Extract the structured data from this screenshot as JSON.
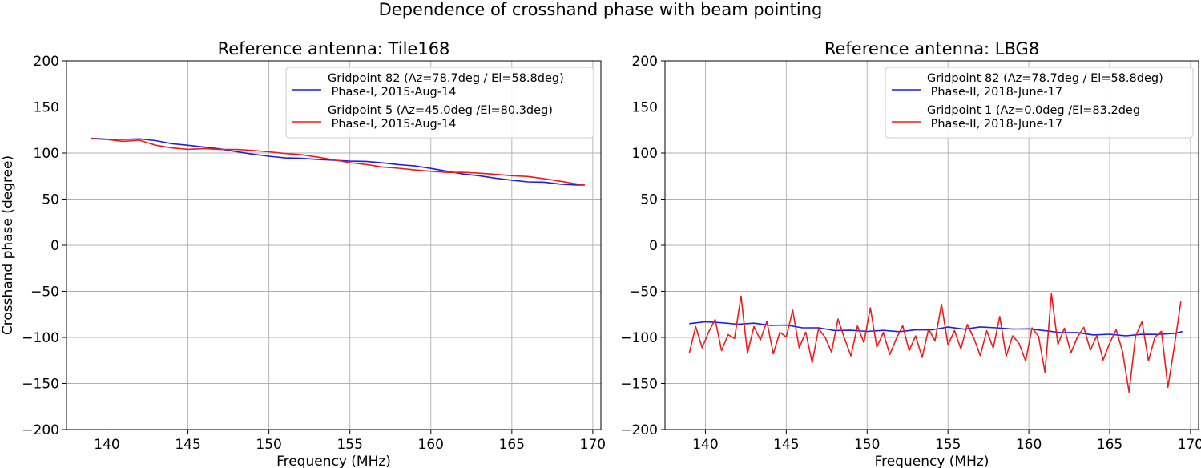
{
  "figure": {
    "suptitle": "Dependence of crosshand phase with beam pointing",
    "ylabel": "Crosshand phase (degree)"
  },
  "colors": {
    "blue": "#1f1fe0",
    "red": "#ee1c1c"
  },
  "chart_data": [
    {
      "type": "line",
      "title": "Reference antenna: Tile168",
      "xlabel": "Frequency (MHz)",
      "ylabel": "Crosshand phase (degree)",
      "xlim": [
        137.5,
        170.5
      ],
      "ylim": [
        -200,
        200
      ],
      "xticks": [
        140,
        145,
        150,
        155,
        160,
        165,
        170
      ],
      "yticks": [
        -200,
        -150,
        -100,
        -50,
        0,
        50,
        100,
        150,
        200
      ],
      "xtick_labels": [
        "140",
        "145",
        "150",
        "155",
        "160",
        "165",
        "170"
      ],
      "ytick_labels": [
        "−200",
        "−150",
        "−100",
        "−50",
        "0",
        "50",
        "100",
        "150",
        "200"
      ],
      "grid": true,
      "legend_position": "upper-right",
      "series": [
        {
          "name_line1": "Gridpoint 82 (Az=78.7deg / El=58.8deg)",
          "name_line2": " Phase-I, 2015-Aug-14",
          "color": "#1f1fe0",
          "x": [
            139.0,
            140.0,
            141.0,
            142.0,
            143.0,
            144.0,
            145.0,
            146.0,
            147.0,
            148.0,
            149.0,
            150.0,
            151.0,
            152.0,
            153.0,
            154.0,
            155.0,
            156.0,
            157.0,
            158.0,
            159.0,
            160.0,
            161.0,
            162.0,
            163.0,
            164.0,
            165.0,
            166.0,
            167.0,
            168.0,
            169.0,
            169.5
          ],
          "y": [
            116,
            114,
            113,
            113,
            111,
            108,
            107,
            106,
            105,
            103,
            101,
            99,
            97,
            96,
            94,
            92,
            90,
            89,
            87,
            85,
            84,
            82,
            80,
            78,
            77,
            75,
            73,
            71,
            70,
            67,
            65,
            64
          ]
        },
        {
          "name_line1": "Gridpoint 5 (Az=45.0deg /El=80.3deg)",
          "name_line2": " Phase-I, 2015-Aug-14",
          "color": "#ee1c1c",
          "x": [
            139.0,
            140.0,
            141.0,
            142.0,
            143.0,
            144.0,
            145.0,
            146.0,
            147.0,
            148.0,
            149.0,
            150.0,
            151.0,
            152.0,
            153.0,
            154.0,
            155.0,
            156.0,
            157.0,
            158.0,
            159.0,
            160.0,
            161.0,
            162.0,
            163.0,
            164.0,
            165.0,
            166.0,
            167.0,
            168.0,
            169.0,
            169.5
          ],
          "y": [
            115,
            115,
            114,
            116,
            111,
            108,
            106,
            106,
            104,
            103,
            101,
            99,
            97,
            96,
            94,
            92,
            90,
            89,
            87,
            86,
            84,
            82,
            80,
            79,
            77,
            75,
            73,
            72,
            70,
            68,
            66,
            66
          ]
        }
      ]
    },
    {
      "type": "line",
      "title": "Reference antenna: LBG8",
      "xlabel": "Frequency (MHz)",
      "ylabel": "",
      "xlim": [
        137.5,
        170.5
      ],
      "ylim": [
        -200,
        200
      ],
      "xticks": [
        140,
        145,
        150,
        155,
        160,
        165,
        170
      ],
      "yticks": [
        -200,
        -150,
        -100,
        -50,
        0,
        50,
        100,
        150,
        200
      ],
      "xtick_labels": [
        "140",
        "145",
        "150",
        "155",
        "160",
        "165",
        "170"
      ],
      "ytick_labels": [
        "−200",
        "−150",
        "−100",
        "−50",
        "0",
        "50",
        "100",
        "150",
        "200"
      ],
      "grid": true,
      "legend_position": "upper-right",
      "series": [
        {
          "name_line1": "Gridpoint 82 (Az=78.7deg / El=58.8deg)",
          "name_line2": " Phase-II, 2018-June-17",
          "color": "#1f1fe0",
          "x": [
            139.0,
            140.0,
            141.0,
            142.0,
            143.0,
            144.0,
            145.0,
            146.0,
            147.0,
            148.0,
            149.0,
            150.0,
            151.0,
            152.0,
            153.0,
            154.0,
            155.0,
            156.0,
            157.0,
            158.0,
            159.0,
            160.0,
            161.0,
            162.0,
            163.0,
            164.0,
            165.0,
            166.0,
            167.0,
            168.0,
            169.0,
            169.5
          ],
          "y": [
            -85,
            -84,
            -86,
            -88,
            -87,
            -89,
            -88,
            -90,
            -89,
            -91,
            -90,
            -91,
            -90,
            -92,
            -91,
            -92,
            -90,
            -93,
            -91,
            -92,
            -93,
            -92,
            -93,
            -94,
            -93,
            -95,
            -94,
            -96,
            -95,
            -96,
            -96,
            -95
          ]
        },
        {
          "name_line1": "Gridpoint 1 (Az=0.0deg /El=83.2deg",
          "name_line2": " Phase-II, 2018-June-17",
          "color": "#ee1c1c",
          "x": [
            139.0,
            139.4,
            139.8,
            140.2,
            140.6,
            141.0,
            141.4,
            141.8,
            142.2,
            142.6,
            143.0,
            143.4,
            143.8,
            144.2,
            144.6,
            145.0,
            145.4,
            145.8,
            146.2,
            146.6,
            147.0,
            147.4,
            147.8,
            148.2,
            148.6,
            149.0,
            149.4,
            149.8,
            150.2,
            150.6,
            151.0,
            151.4,
            151.8,
            152.2,
            152.6,
            153.0,
            153.4,
            153.8,
            154.2,
            154.6,
            155.0,
            155.4,
            155.8,
            156.2,
            156.6,
            157.0,
            157.4,
            157.8,
            158.2,
            158.6,
            159.0,
            159.4,
            159.8,
            160.2,
            160.6,
            161.0,
            161.4,
            161.8,
            162.2,
            162.6,
            163.0,
            163.4,
            163.8,
            164.2,
            164.6,
            165.0,
            165.4,
            165.8,
            166.2,
            166.6,
            167.0,
            167.4,
            167.8,
            168.2,
            168.6,
            169.0,
            169.4
          ],
          "y": [
            -118,
            -88,
            -110,
            -92,
            -78,
            -112,
            -95,
            -100,
            -55,
            -118,
            -90,
            -105,
            -85,
            -120,
            -96,
            -100,
            -70,
            -110,
            -92,
            -125,
            -88,
            -98,
            -115,
            -80,
            -102,
            -122,
            -90,
            -108,
            -70,
            -112,
            -95,
            -118,
            -100,
            -85,
            -112,
            -96,
            -120,
            -90,
            -104,
            -65,
            -110,
            -95,
            -115,
            -88,
            -102,
            -120,
            -92,
            -110,
            -75,
            -118,
            -96,
            -105,
            -125,
            -90,
            -100,
            -140,
            -55,
            -110,
            -92,
            -118,
            -100,
            -88,
            -112,
            -96,
            -122,
            -104,
            -90,
            -115,
            -160,
            -100,
            -85,
            -128,
            -102,
            -95,
            -155,
            -110,
            -60
          ]
        }
      ]
    }
  ]
}
